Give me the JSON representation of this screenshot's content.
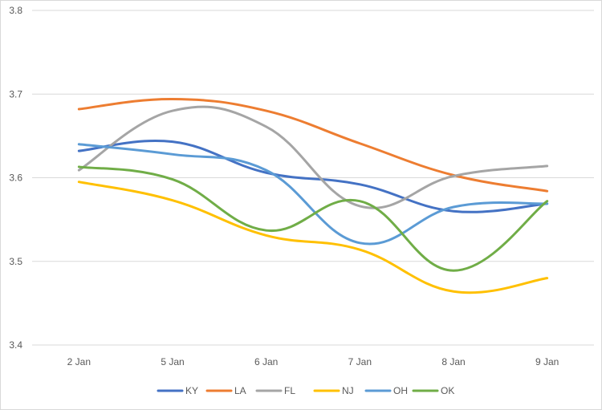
{
  "chart_data": {
    "type": "line",
    "title": "",
    "xlabel": "",
    "ylabel": "",
    "categories": [
      "2 Jan",
      "5 Jan",
      "6 Jan",
      "7 Jan",
      "8 Jan",
      "9 Jan"
    ],
    "ylim": [
      3.4,
      3.8
    ],
    "yticks": [
      "3.4",
      "3.5",
      "3.6",
      "3.7",
      "3.8"
    ],
    "grid": true,
    "legend": "bottom",
    "smooth": true,
    "series": [
      {
        "name": "KY",
        "color": "#4472c4",
        "values": [
          3.632,
          3.643,
          3.606,
          3.592,
          3.56,
          3.569
        ]
      },
      {
        "name": "LA",
        "color": "#ed7d31",
        "values": [
          3.682,
          3.694,
          3.68,
          3.641,
          3.603,
          3.584
        ]
      },
      {
        "name": "FL",
        "color": "#a5a5a5",
        "values": [
          3.609,
          3.68,
          3.661,
          3.566,
          3.602,
          3.614
        ]
      },
      {
        "name": "NJ",
        "color": "#ffc000",
        "values": [
          3.595,
          3.573,
          3.531,
          3.514,
          3.464,
          3.48
        ]
      },
      {
        "name": "OH",
        "color": "#5b9bd5",
        "values": [
          3.64,
          3.628,
          3.609,
          3.522,
          3.565,
          3.569
        ]
      },
      {
        "name": "OK",
        "color": "#70ad47",
        "values": [
          3.613,
          3.598,
          3.537,
          3.572,
          3.489,
          3.572
        ]
      }
    ]
  }
}
